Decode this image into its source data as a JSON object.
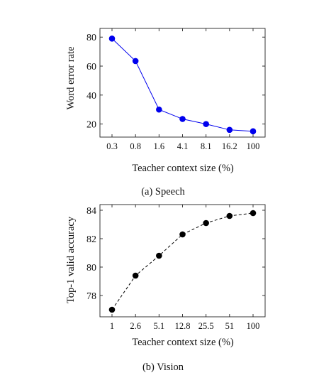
{
  "chart_data": [
    {
      "type": "line",
      "caption": "(a) Speech",
      "xlabel": "Teacher context size (%)",
      "ylabel": "Word error rate",
      "categories": [
        "0.3",
        "0.8",
        "1.6",
        "4.1",
        "8.1",
        "16.2",
        "100"
      ],
      "series": [
        {
          "values": [
            79,
            63.5,
            30,
            23.5,
            20,
            16,
            15
          ],
          "color": "#0000ee",
          "line_style": "solid",
          "marker": "filled circle"
        }
      ],
      "ylim": [
        11,
        86
      ],
      "yticks": [
        20,
        40,
        60,
        80
      ],
      "grid": false
    },
    {
      "type": "line",
      "caption": "(b) Vision",
      "xlabel": "Teacher context size (%)",
      "ylabel": "Top-1 valid accuracy",
      "categories": [
        "1",
        "2.6",
        "5.1",
        "12.8",
        "25.5",
        "51",
        "100"
      ],
      "series": [
        {
          "values": [
            77,
            79.4,
            80.8,
            82.3,
            83.1,
            83.6,
            83.8
          ],
          "color": "#000000",
          "line_style": "dashed",
          "marker": "filled circle"
        }
      ],
      "ylim": [
        76.5,
        84.4
      ],
      "yticks": [
        78,
        80,
        82,
        84
      ],
      "grid": false
    }
  ]
}
